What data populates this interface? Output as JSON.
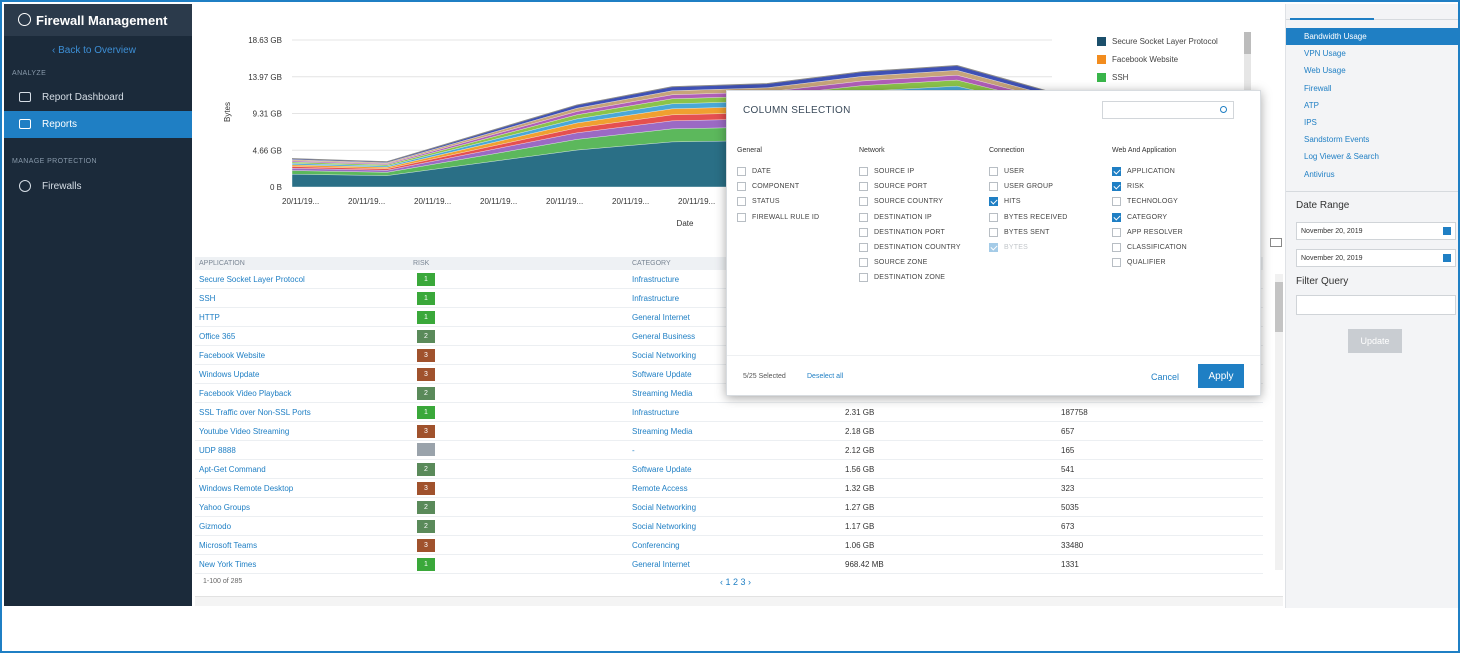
{
  "sidebar": {
    "app_title": "Firewall Management",
    "back_link": "Back to Overview",
    "section_analyze": "ANALYZE",
    "nav_report_dashboard": "Report Dashboard",
    "nav_reports": "Reports",
    "section_manage": "MANAGE PROTECTION",
    "nav_firewalls": "Firewalls"
  },
  "chart_data": {
    "type": "area",
    "title": "",
    "xlabel": "Date",
    "ylabel": "Bytes",
    "y_ticks": [
      "0 B",
      "4.66 GB",
      "9.31 GB",
      "13.97 GB",
      "18.63 GB"
    ],
    "x_ticks": [
      "20/11/19...",
      "20/11/19...",
      "20/11/19...",
      "20/11/19...",
      "20/11/19...",
      "20/11/19...",
      "20/11/19..."
    ],
    "ylim": [
      0,
      18.63
    ],
    "y_unit": "GB",
    "total_series_y": [
      3.6,
      3.2,
      6.8,
      10.4,
      12.7,
      13.1,
      14.6,
      15.4,
      12.0
    ],
    "legend": [
      {
        "name": "Secure Socket Layer Protocol",
        "color": "#1b4f6b"
      },
      {
        "name": "Facebook Website",
        "color": "#f28c1e"
      },
      {
        "name": "SSH",
        "color": "#39b54a"
      }
    ],
    "area_colors": [
      "#2a6f86",
      "#5cb85c",
      "#9b6ac4",
      "#e55050",
      "#f0a030",
      "#4aa8d8",
      "#8bc34a",
      "#b05eb8",
      "#c7a57a",
      "#3f51b5"
    ],
    "grid": true
  },
  "table": {
    "headers": [
      "APPLICATION",
      "RISK",
      "CATEGORY",
      "",
      ""
    ],
    "rows": [
      {
        "app": "Secure Socket Layer Protocol",
        "risk": "1",
        "risk_color": "#3aa83a",
        "category": "Infrastructure",
        "bytes": "",
        "hits": ""
      },
      {
        "app": "SSH",
        "risk": "1",
        "risk_color": "#3aa83a",
        "category": "Infrastructure",
        "bytes": "",
        "hits": ""
      },
      {
        "app": "HTTP",
        "risk": "1",
        "risk_color": "#3aa83a",
        "category": "General Internet",
        "bytes": "",
        "hits": ""
      },
      {
        "app": "Office 365",
        "risk": "2",
        "risk_color": "#5a8a5a",
        "category": "General Business",
        "bytes": "",
        "hits": ""
      },
      {
        "app": "Facebook Website",
        "risk": "3",
        "risk_color": "#a0522d",
        "category": "Social Networking",
        "bytes": "",
        "hits": ""
      },
      {
        "app": "Windows Update",
        "risk": "3",
        "risk_color": "#a0522d",
        "category": "Software Update",
        "bytes": "",
        "hits": ""
      },
      {
        "app": "Facebook Video Playback",
        "risk": "2",
        "risk_color": "#5a8a5a",
        "category": "Streaming Media",
        "bytes": "",
        "hits": ""
      },
      {
        "app": "SSL Traffic over Non-SSL Ports",
        "risk": "1",
        "risk_color": "#3aa83a",
        "category": "Infrastructure",
        "bytes": "2.31 GB",
        "hits": "187758"
      },
      {
        "app": "Youtube Video Streaming",
        "risk": "3",
        "risk_color": "#a0522d",
        "category": "Streaming Media",
        "bytes": "2.18 GB",
        "hits": "657"
      },
      {
        "app": "UDP 8888",
        "risk": "",
        "risk_color": "#9aa3ab",
        "category": "-",
        "bytes": "2.12 GB",
        "hits": "165"
      },
      {
        "app": "Apt-Get Command",
        "risk": "2",
        "risk_color": "#5a8a5a",
        "category": "Software Update",
        "bytes": "1.56 GB",
        "hits": "541"
      },
      {
        "app": "Windows Remote Desktop",
        "risk": "3",
        "risk_color": "#a0522d",
        "category": "Remote Access",
        "bytes": "1.32 GB",
        "hits": "323"
      },
      {
        "app": "Yahoo Groups",
        "risk": "2",
        "risk_color": "#5a8a5a",
        "category": "Social Networking",
        "bytes": "1.27 GB",
        "hits": "5035"
      },
      {
        "app": "Gizmodo",
        "risk": "2",
        "risk_color": "#5a8a5a",
        "category": "Social Networking",
        "bytes": "1.17 GB",
        "hits": "673"
      },
      {
        "app": "Microsoft Teams",
        "risk": "3",
        "risk_color": "#a0522d",
        "category": "Conferencing",
        "bytes": "1.06 GB",
        "hits": "33480"
      },
      {
        "app": "New York Times",
        "risk": "1",
        "risk_color": "#3aa83a",
        "category": "General Internet",
        "bytes": "968.42 MB",
        "hits": "1331"
      }
    ],
    "footer_count": "1-100 of 285",
    "pager": "‹ 1 2 3 ›"
  },
  "right_panel": {
    "reports": [
      "Bandwidth Usage",
      "VPN Usage",
      "Web Usage",
      "Firewall",
      "ATP",
      "IPS",
      "Sandstorm Events",
      "Log Viewer & Search",
      "Antivirus"
    ],
    "date_range_label": "Date Range",
    "date_from": "November 20, 2019",
    "date_to": "November 20, 2019",
    "filter_query_label": "Filter Query",
    "update_button": "Update"
  },
  "modal": {
    "title": "COLUMN SELECTION",
    "columns": [
      {
        "heading": "General",
        "options": [
          {
            "label": "DATE",
            "checked": false
          },
          {
            "label": "COMPONENT",
            "checked": false
          },
          {
            "label": "STATUS",
            "checked": false
          },
          {
            "label": "FIREWALL RULE ID",
            "checked": false
          }
        ]
      },
      {
        "heading": "Network",
        "options": [
          {
            "label": "SOURCE IP",
            "checked": false
          },
          {
            "label": "SOURCE PORT",
            "checked": false
          },
          {
            "label": "SOURCE COUNTRY",
            "checked": false
          },
          {
            "label": "DESTINATION IP",
            "checked": false
          },
          {
            "label": "DESTINATION PORT",
            "checked": false
          },
          {
            "label": "DESTINATION COUNTRY",
            "checked": false
          },
          {
            "label": "SOURCE ZONE",
            "checked": false
          },
          {
            "label": "DESTINATION ZONE",
            "checked": false
          }
        ]
      },
      {
        "heading": "Connection",
        "options": [
          {
            "label": "USER",
            "checked": false
          },
          {
            "label": "USER GROUP",
            "checked": false
          },
          {
            "label": "HITS",
            "checked": true
          },
          {
            "label": "BYTES RECEIVED",
            "checked": false
          },
          {
            "label": "BYTES SENT",
            "checked": false
          },
          {
            "label": "BYTES",
            "checked": true,
            "disabled": true
          }
        ]
      },
      {
        "heading": "Web And Application",
        "options": [
          {
            "label": "APPLICATION",
            "checked": true
          },
          {
            "label": "RISK",
            "checked": true
          },
          {
            "label": "TECHNOLOGY",
            "checked": false
          },
          {
            "label": "CATEGORY",
            "checked": true
          },
          {
            "label": "APP RESOLVER",
            "checked": false
          },
          {
            "label": "CLASSIFICATION",
            "checked": false
          },
          {
            "label": "QUALIFIER",
            "checked": false
          }
        ]
      }
    ],
    "selected_count": "5/25 Selected",
    "deselect_all": "Deselect all",
    "cancel": "Cancel",
    "apply": "Apply"
  }
}
